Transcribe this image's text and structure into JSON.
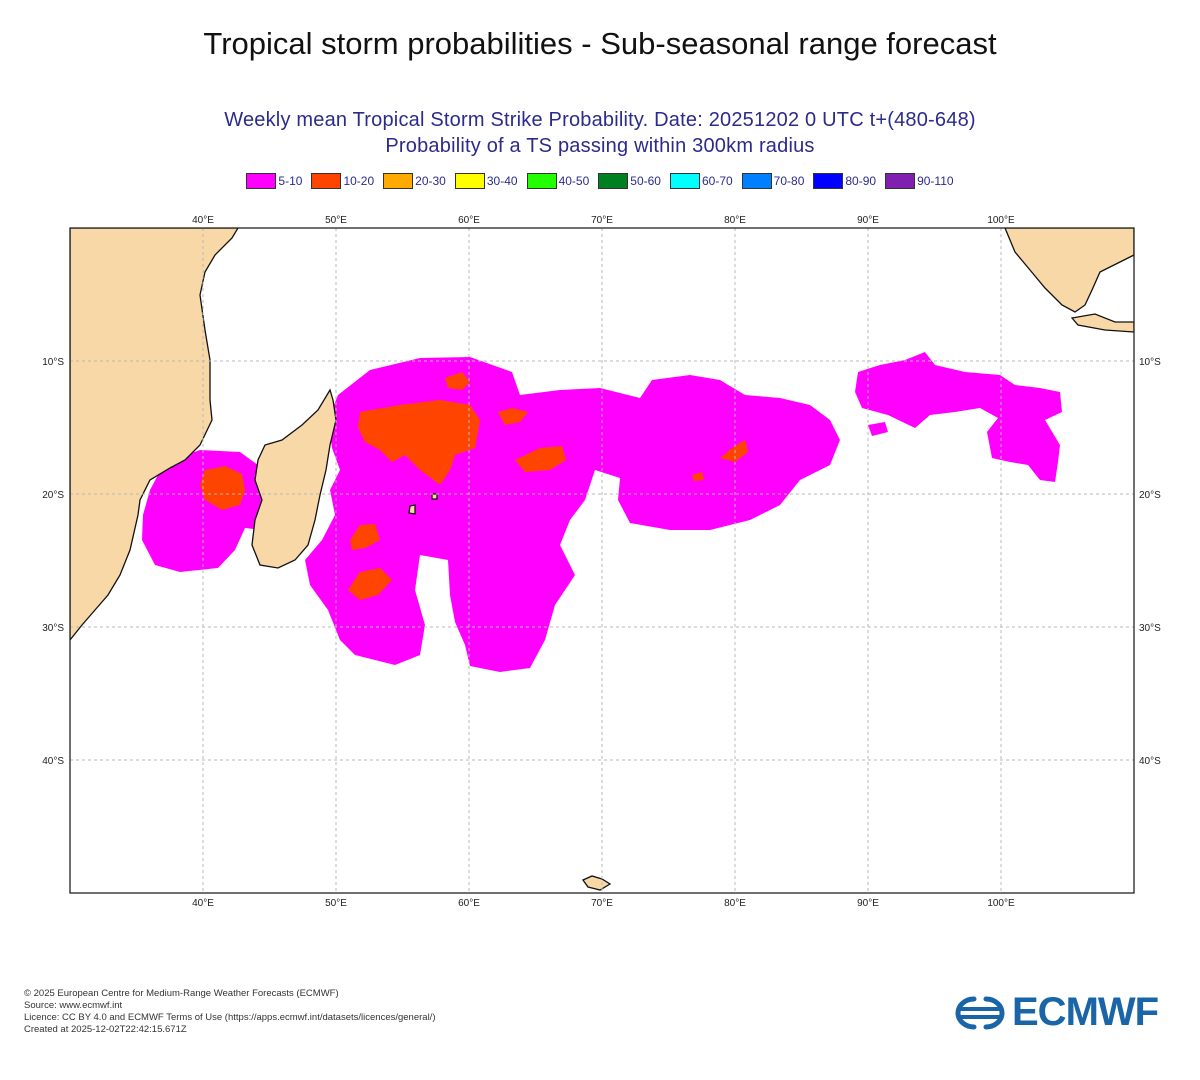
{
  "page": {
    "title": "Tropical storm probabilities - Sub-seasonal range forecast"
  },
  "map": {
    "subtitle_line1": "Weekly mean Tropical Storm Strike Probability. Date: 20251202  0 UTC   t+(480-648)",
    "subtitle_line2": "Probability of a TS passing within  300km radius",
    "legend": [
      {
        "label": "5-10",
        "color": "#ff00ff"
      },
      {
        "label": "10-20",
        "color": "#ff4400"
      },
      {
        "label": "20-30",
        "color": "#ffaa00"
      },
      {
        "label": "30-40",
        "color": "#ffff00"
      },
      {
        "label": "40-50",
        "color": "#22ff00"
      },
      {
        "label": "50-60",
        "color": "#008020"
      },
      {
        "label": "60-70",
        "color": "#00ffff"
      },
      {
        "label": "70-80",
        "color": "#0080ff"
      },
      {
        "label": "80-90",
        "color": "#0000ff"
      },
      {
        "label": "90-110",
        "color": "#8020b0"
      }
    ],
    "lon_labels": [
      "40°E",
      "50°E",
      "60°E",
      "70°E",
      "80°E",
      "90°E",
      "100°E"
    ],
    "lat_labels": [
      "10°S",
      "20°S",
      "30°S",
      "40°S"
    ],
    "colors": {
      "land": "#f9d8a8",
      "ocean": "#ffffff",
      "prob_5_10": "#ff00ff",
      "prob_10_20": "#ff4400",
      "grid": "#b8b8b8"
    }
  },
  "footer": {
    "line1": "© 2025 European Centre for Medium-Range Weather Forecasts (ECMWF)",
    "line2": "Source: www.ecmwf.int",
    "line3": "Licence: CC BY 4.0 and ECMWF Terms of Use (https://apps.ecmwf.int/datasets/licences/general/)",
    "line4": "Created at 2025-12-02T22:42:15.671Z"
  },
  "logo": {
    "text": "ECMWF",
    "color": "#1a64a8"
  }
}
